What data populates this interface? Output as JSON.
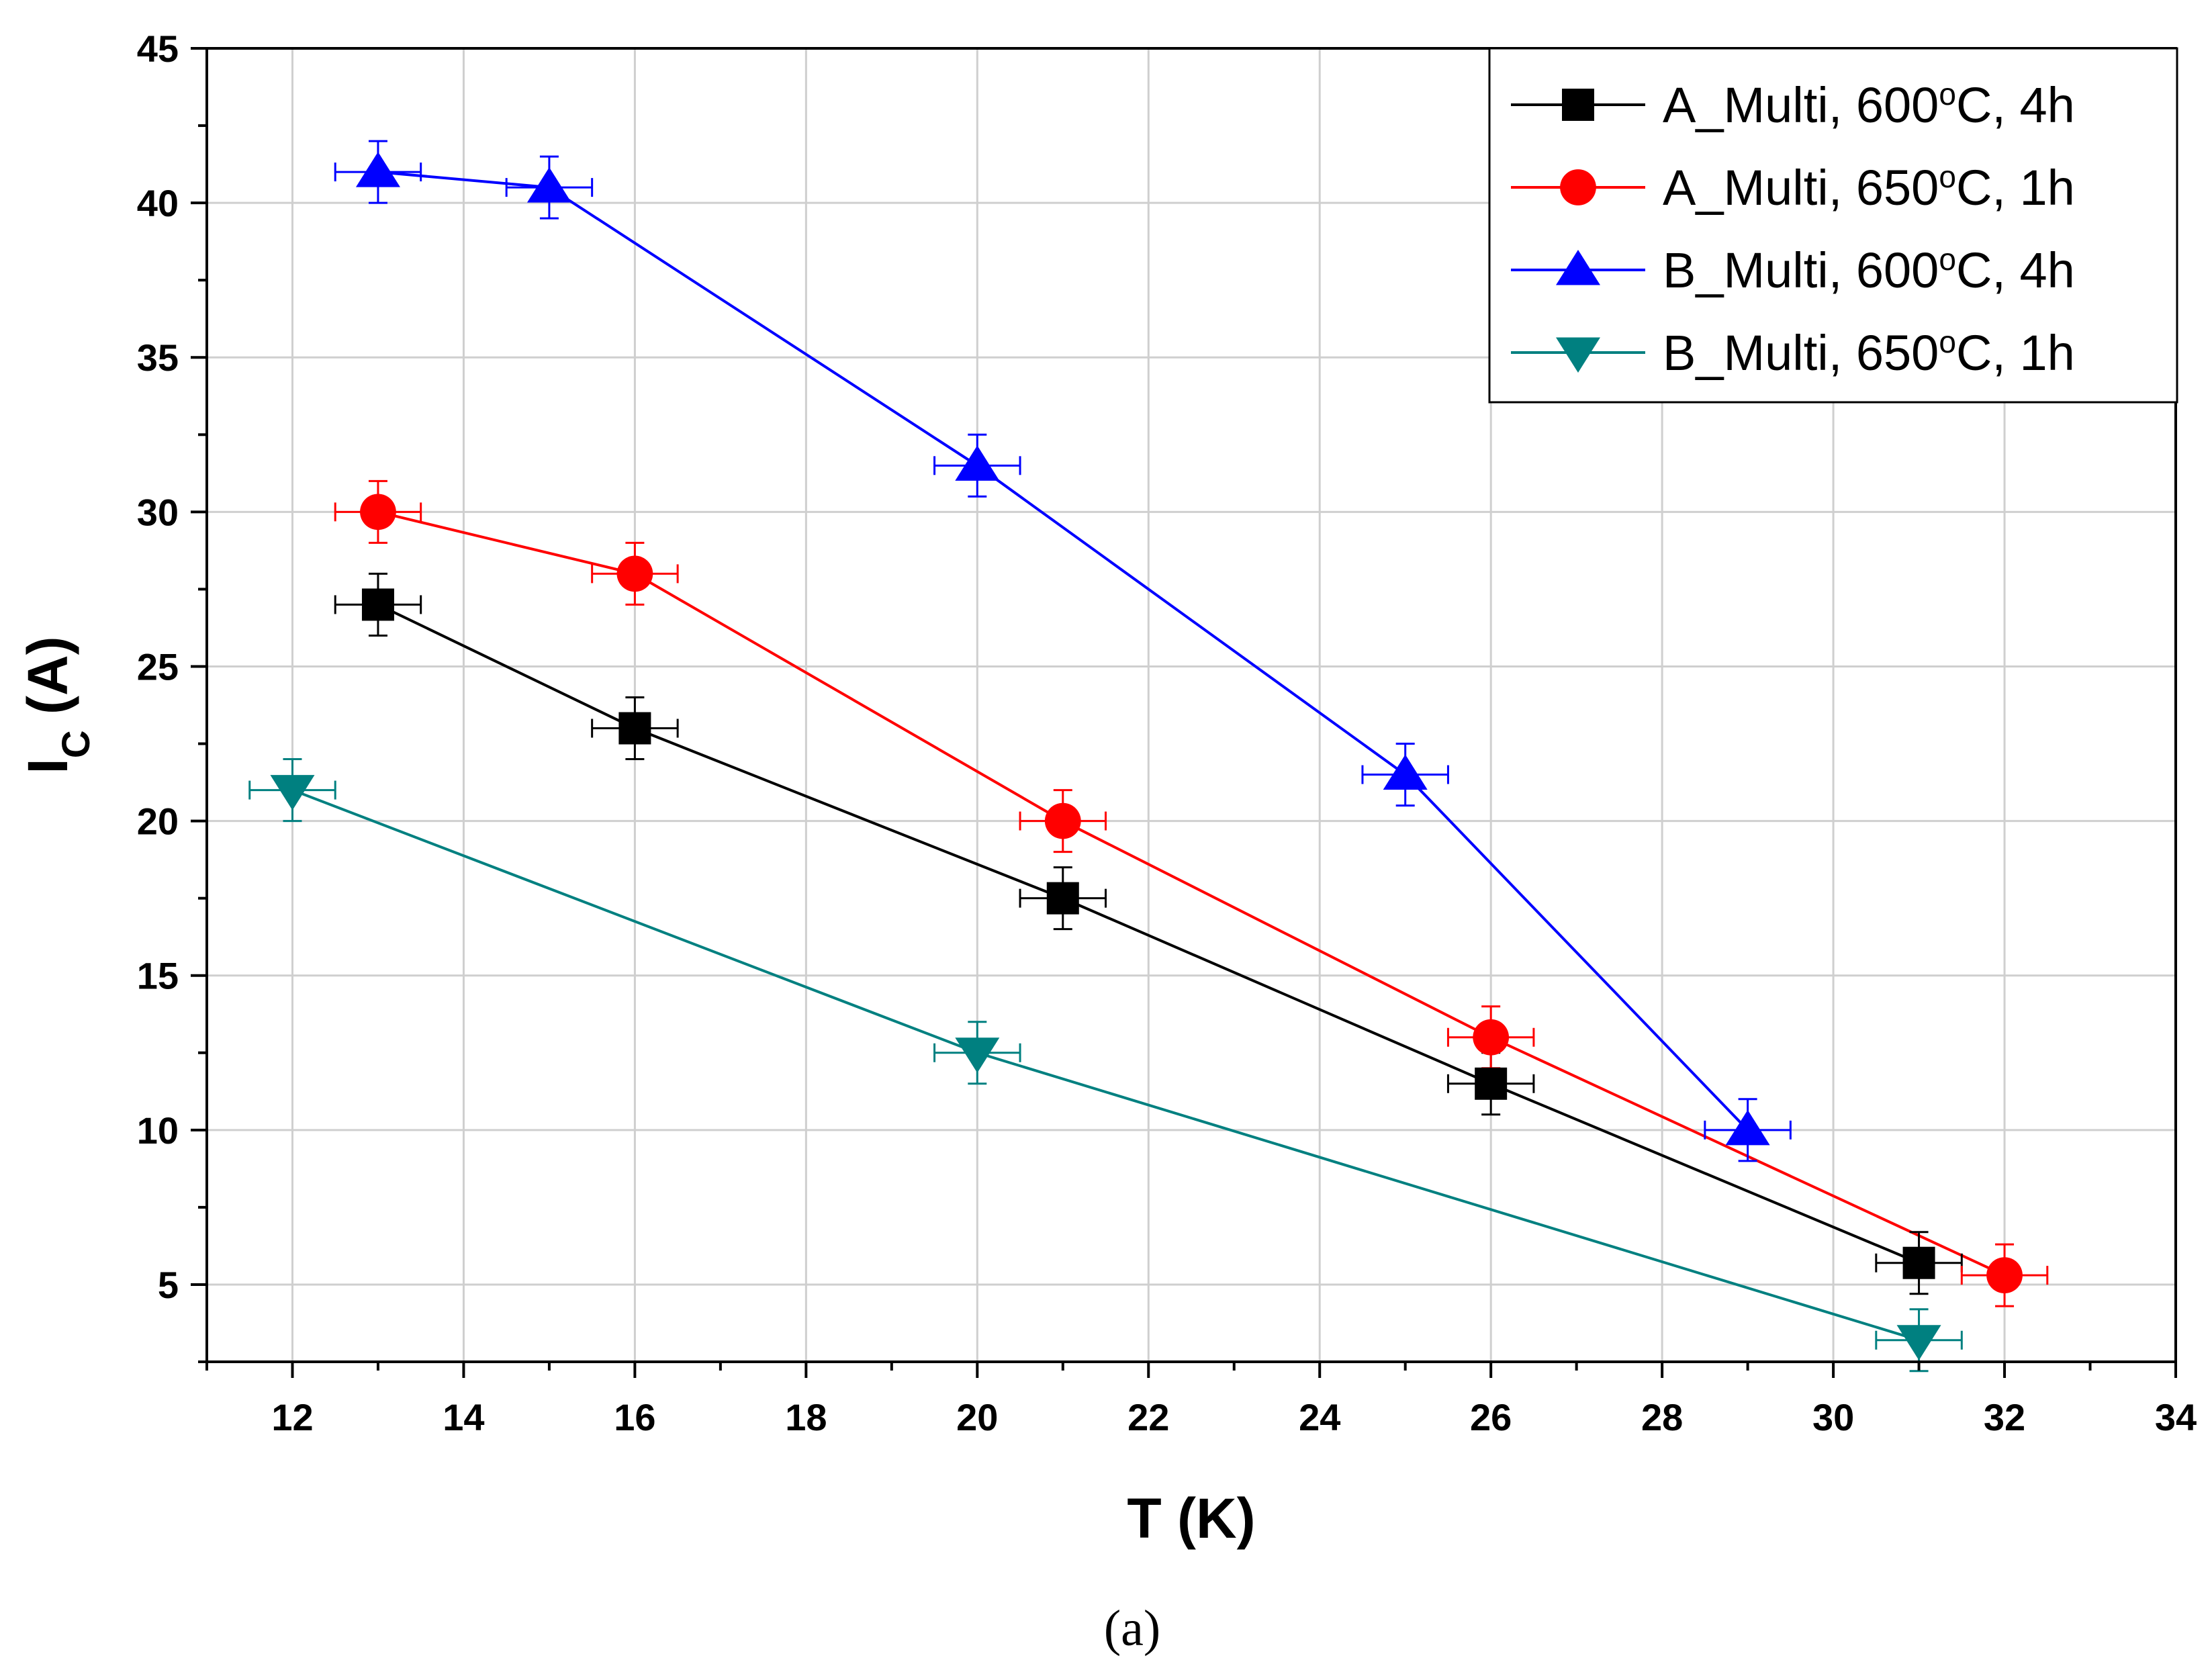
{
  "caption": "(a)",
  "chart_data": {
    "type": "line",
    "xlabel": "T (K)",
    "ylabel_main": "I",
    "ylabel_sub": "C",
    "ylabel_rest": " (A)",
    "xlim": [
      11,
      34
    ],
    "ylim": [
      2.5,
      45
    ],
    "xticks": [
      12,
      14,
      16,
      18,
      20,
      22,
      24,
      26,
      28,
      30,
      32,
      34
    ],
    "yticks": [
      5,
      10,
      15,
      20,
      25,
      30,
      35,
      40,
      45
    ],
    "grid": true,
    "legend_position": "top-right",
    "x_error": 0.5,
    "y_error": 1.0,
    "series": [
      {
        "name": "A_Multi, 600",
        "sup": "o",
        "suffix": "C, 4h",
        "color": "#000000",
        "marker": "square",
        "x": [
          13,
          16,
          21,
          26,
          31
        ],
        "y": [
          27,
          23,
          17.5,
          11.5,
          5.7
        ]
      },
      {
        "name": "A_Multi, 650",
        "sup": "o",
        "suffix": "C, 1h",
        "color": "#ff0000",
        "marker": "circle",
        "x": [
          13,
          16,
          21,
          26,
          32
        ],
        "y": [
          30,
          28,
          20,
          13,
          5.3
        ]
      },
      {
        "name": "B_Multi, 600",
        "sup": "o",
        "suffix": "C, 4h",
        "color": "#0000ff",
        "marker": "triangle-up",
        "x": [
          13,
          15,
          20,
          25,
          29
        ],
        "y": [
          41,
          40.5,
          31.5,
          21.5,
          10
        ]
      },
      {
        "name": "B_Multi, 650",
        "sup": "o",
        "suffix": "C, 1h",
        "color": "#008080",
        "marker": "triangle-down",
        "x": [
          12,
          20,
          31
        ],
        "y": [
          21,
          12.5,
          3.2
        ]
      }
    ]
  }
}
